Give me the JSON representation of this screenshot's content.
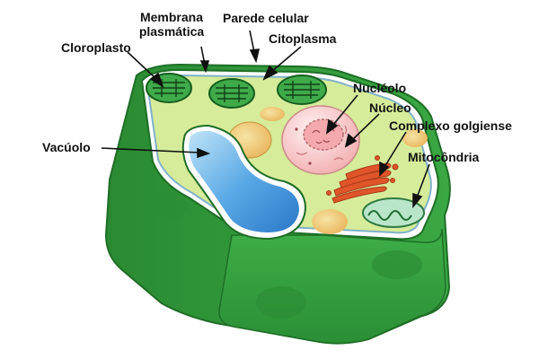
{
  "labels": {
    "membrana_line1": "Membrana",
    "membrana_line2": "plasmática",
    "parede": "Parede celular",
    "citoplasma": "Citoplasma",
    "cloroplasto": "Cloroplasto",
    "nucleolo": "Nucléolo",
    "nucleo": "Núcleo",
    "golgi": "Complexo golgiense",
    "vacuolo": "Vacúolo",
    "mitocondria": "Mitocôndria"
  },
  "colors": {
    "cell_wall": "#2f9e3a",
    "cell_wall_dark": "#1f7a2a",
    "membrane": "#9fd3e8",
    "cytoplasm": "#d6ec9a",
    "chloroplast": "#3faa4a",
    "vacuole": "#3d8fd8",
    "nucleus": "#f7c6c6",
    "golgi": "#e0552b",
    "mitochondria": "#b9e6c9"
  }
}
